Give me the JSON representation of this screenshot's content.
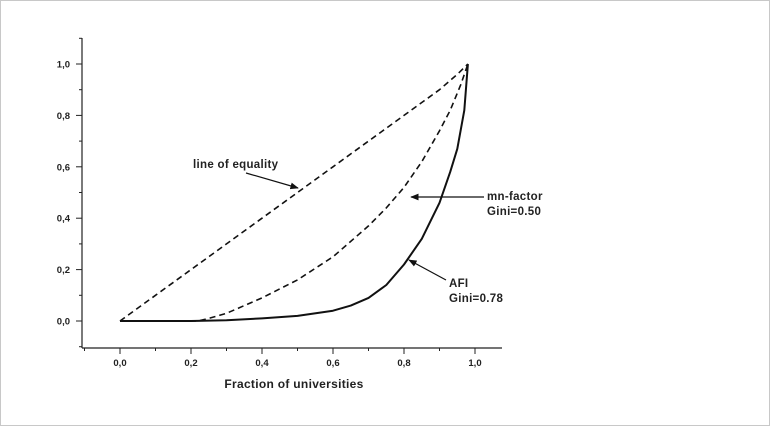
{
  "chart_data": {
    "type": "line",
    "title": "",
    "xlabel": "Fraction of universities",
    "ylabel": "",
    "xlim": [
      -0.2,
      1.1
    ],
    "ylim": [
      -0.12,
      1.1
    ],
    "grid": false,
    "x_ticks": [
      "0,0",
      "0,2",
      "0,4",
      "0,6",
      "0,8",
      "1,0"
    ],
    "x_tick_values": [
      0.0,
      0.2,
      0.4,
      0.6,
      0.8,
      1.0
    ],
    "y_ticks": [
      "0,0",
      "0,2",
      "0,4",
      "0,6",
      "0,8",
      "1,0"
    ],
    "y_tick_values": [
      0.0,
      0.2,
      0.4,
      0.6,
      0.8,
      1.0
    ],
    "series": [
      {
        "style": "dashed",
        "x": [
          0.0,
          0.1,
          0.2,
          0.3,
          0.4,
          0.5,
          0.6,
          0.7,
          0.8,
          0.9,
          0.95,
          0.98
        ],
        "y": [
          0.0,
          0.1,
          0.2,
          0.3,
          0.4,
          0.5,
          0.6,
          0.7,
          0.8,
          0.9,
          0.96,
          1.0
        ]
      },
      {
        "style": "dashed",
        "x": [
          0.0,
          0.22,
          0.25,
          0.3,
          0.4,
          0.5,
          0.6,
          0.7,
          0.75,
          0.8,
          0.85,
          0.9,
          0.93,
          0.96,
          0.98
        ],
        "y": [
          0.0,
          0.0,
          0.01,
          0.03,
          0.09,
          0.16,
          0.25,
          0.37,
          0.44,
          0.52,
          0.62,
          0.74,
          0.82,
          0.92,
          1.0
        ]
      },
      {
        "style": "solid",
        "x": [
          0.0,
          0.2,
          0.3,
          0.4,
          0.5,
          0.6,
          0.65,
          0.7,
          0.75,
          0.8,
          0.85,
          0.9,
          0.93,
          0.95,
          0.97,
          0.98
        ],
        "y": [
          0.0,
          0.0,
          0.003,
          0.01,
          0.02,
          0.04,
          0.06,
          0.09,
          0.14,
          0.22,
          0.32,
          0.46,
          0.58,
          0.67,
          0.82,
          1.0
        ]
      }
    ],
    "annotations": [
      {
        "id": "equality",
        "lines": [
          "line of equality"
        ]
      },
      {
        "id": "mn",
        "lines": [
          "mn-factor",
          "Gini=0.50"
        ]
      },
      {
        "id": "afi",
        "lines": [
          "AFI",
          "Gini=0.78"
        ]
      }
    ]
  }
}
